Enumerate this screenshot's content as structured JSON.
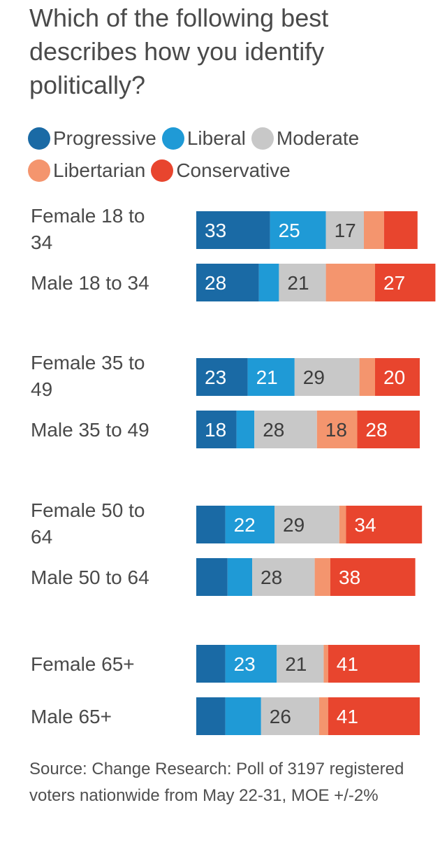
{
  "title": "Which of the following best describes how you identify politically?",
  "legend": {
    "items": [
      {
        "label": "Progressive",
        "color": "#1a6aa5"
      },
      {
        "label": "Liberal",
        "color": "#1f9ad6"
      },
      {
        "label": "Moderate",
        "color": "#c8c8c8"
      },
      {
        "label": "Libertarian",
        "color": "#f4956e"
      },
      {
        "label": "Conservative",
        "color": "#e8452e"
      }
    ]
  },
  "chart_data": {
    "type": "bar",
    "orientation": "horizontal",
    "stacked": true,
    "title": "Which of the following best describes how you identify politically?",
    "series_names": [
      "Progressive",
      "Liberal",
      "Moderate",
      "Libertarian",
      "Conservative"
    ],
    "groups": [
      {
        "rows": [
          {
            "label": "Female 18 to 34",
            "values": [
              33,
              25,
              17,
              9,
              15
            ],
            "labels": [
              "33",
              "25",
              "17",
              "",
              ""
            ]
          },
          {
            "label": "Male 18 to 34",
            "values": [
              28,
              9,
              21,
              22,
              27
            ],
            "labels": [
              "28",
              "",
              "21",
              "",
              "27"
            ]
          }
        ]
      },
      {
        "rows": [
          {
            "label": "Female 35 to 49",
            "values": [
              23,
              21,
              29,
              7,
              20
            ],
            "labels": [
              "23",
              "21",
              "29",
              "",
              "20"
            ]
          },
          {
            "label": "Male 35 to 49",
            "values": [
              18,
              8,
              28,
              18,
              28
            ],
            "labels": [
              "18",
              "",
              "28",
              "18",
              "28"
            ]
          }
        ]
      },
      {
        "rows": [
          {
            "label": "Female 50 to 64",
            "values": [
              13,
              22,
              29,
              3,
              34
            ],
            "labels": [
              "",
              "22",
              "29",
              "",
              "34"
            ]
          },
          {
            "label": "Male 50 to 64",
            "values": [
              14,
              11,
              28,
              7,
              38
            ],
            "labels": [
              "",
              "",
              "28",
              "",
              "38"
            ]
          }
        ]
      },
      {
        "rows": [
          {
            "label": "Female 65+",
            "values": [
              13,
              23,
              21,
              2,
              41
            ],
            "labels": [
              "",
              "23",
              "21",
              "",
              "41"
            ]
          },
          {
            "label": "Male 65+",
            "values": [
              13,
              16,
              26,
              4,
              41
            ],
            "labels": [
              "",
              "",
              "26",
              "",
              "41"
            ]
          }
        ]
      }
    ]
  },
  "source": "Source: Change Research: Poll of 3197 registered voters nationwide from May 22-31, MOE +/-2%"
}
